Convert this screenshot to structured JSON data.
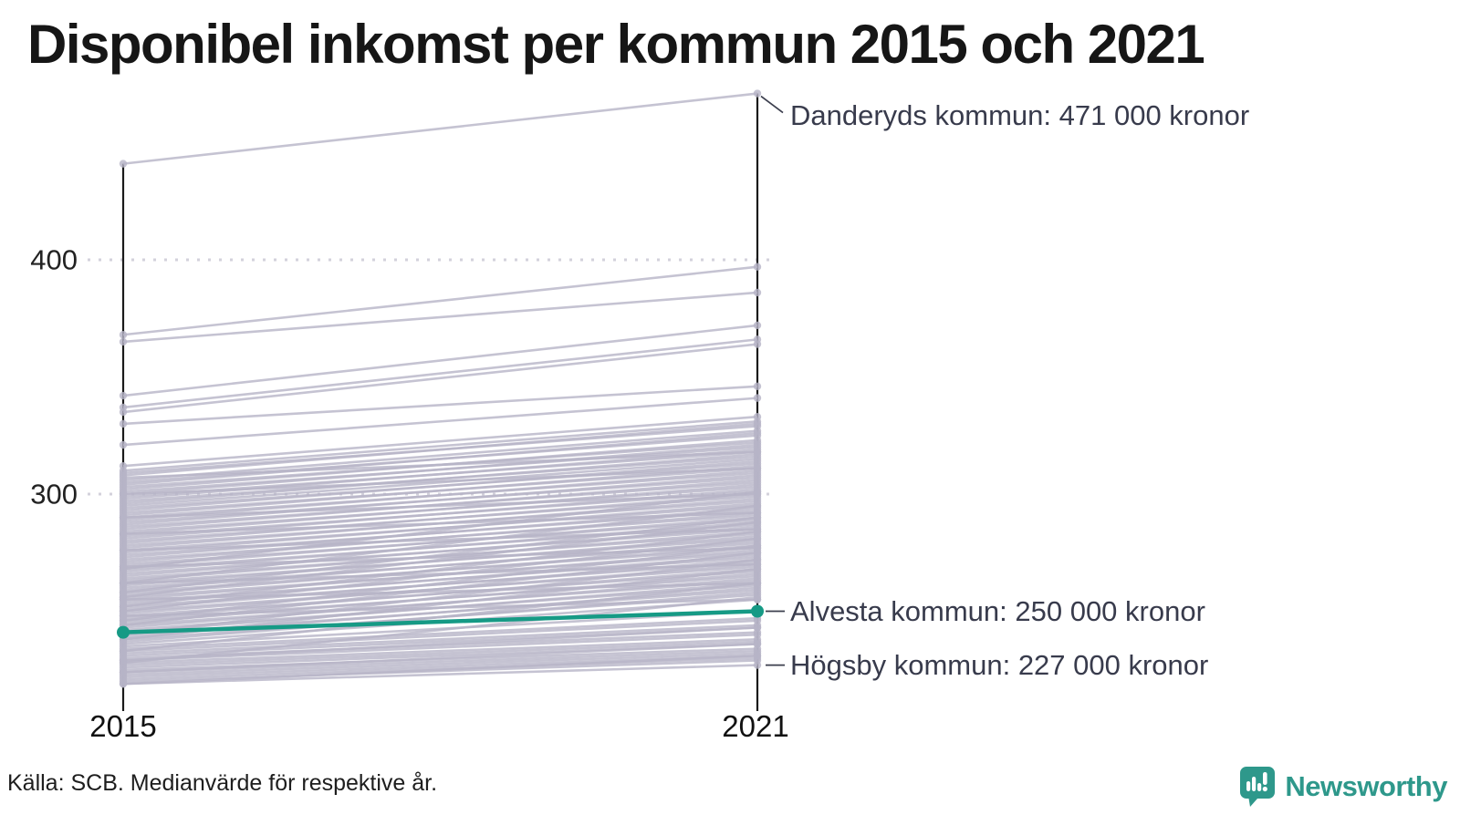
{
  "title": "Disponibel inkomst per kommun 2015 och 2021",
  "source": "Källa: SCB. Medianvärde för respektive år.",
  "logo": {
    "name": "Newsworthy"
  },
  "colors": {
    "highlight": "#169a85",
    "background_line": "#b7b4c7",
    "axis": "#1a1a1a",
    "grid_dot": "#d3d1db",
    "annotation_text": "#383b4c",
    "logo_teal": "#2e988b"
  },
  "chart_data": {
    "type": "line",
    "subtype": "slope",
    "title": "Disponibel inkomst per kommun 2015 och 2021",
    "x_categories": [
      "2015",
      "2021"
    ],
    "y_ticks": [
      300,
      400
    ],
    "ylim": [
      215,
      475
    ],
    "unit": "tusen kronor",
    "grid": "dotted horizontal",
    "legend_position": "none",
    "highlight": {
      "name": "Alvesta kommun",
      "values": [
        241,
        250
      ],
      "color": "#169a85"
    },
    "annotations": [
      {
        "name": "Danderyds kommun",
        "label": "Danderyds kommun: 471 000 kronor",
        "values": [
          441,
          471
        ]
      },
      {
        "name": "Alvesta kommun",
        "label": "Alvesta kommun: 250 000 kronor",
        "values": [
          241,
          250
        ]
      },
      {
        "name": "Högsby kommun",
        "label": "Högsby kommun: 227 000 kronor",
        "values": [
          219,
          227
        ]
      }
    ],
    "layout_hints": {
      "annotation_dy": [
        24,
        0,
        0
      ]
    },
    "background_series": [
      [
        441,
        471
      ],
      [
        368,
        397
      ],
      [
        365,
        386
      ],
      [
        342,
        372
      ],
      [
        337,
        366
      ],
      [
        335,
        364
      ],
      [
        330,
        346
      ],
      [
        321,
        341
      ],
      [
        312,
        333
      ],
      [
        310,
        331
      ],
      [
        309,
        329
      ],
      [
        308,
        330
      ],
      [
        306,
        327
      ],
      [
        305,
        325
      ],
      [
        304,
        326
      ],
      [
        303,
        322
      ],
      [
        302,
        323
      ],
      [
        301,
        320
      ],
      [
        300,
        321
      ],
      [
        299,
        318
      ],
      [
        298,
        319
      ],
      [
        297,
        316
      ],
      [
        296,
        317
      ],
      [
        295,
        315
      ],
      [
        294,
        313
      ],
      [
        293,
        314
      ],
      [
        292,
        311
      ],
      [
        291,
        312
      ],
      [
        290,
        309
      ],
      [
        289,
        310
      ],
      [
        288,
        307
      ],
      [
        287,
        308
      ],
      [
        286,
        305
      ],
      [
        285,
        306
      ],
      [
        284,
        303
      ],
      [
        283,
        304
      ],
      [
        282,
        301
      ],
      [
        281,
        302
      ],
      [
        280,
        299
      ],
      [
        279,
        300
      ],
      [
        278,
        297
      ],
      [
        277,
        298
      ],
      [
        276,
        295
      ],
      [
        275,
        296
      ],
      [
        274,
        293
      ],
      [
        273,
        294
      ],
      [
        272,
        291
      ],
      [
        271,
        292
      ],
      [
        270,
        289
      ],
      [
        269,
        290
      ],
      [
        268,
        287
      ],
      [
        267,
        288
      ],
      [
        266,
        285
      ],
      [
        265,
        286
      ],
      [
        264,
        283
      ],
      [
        263,
        284
      ],
      [
        262,
        281
      ],
      [
        261,
        282
      ],
      [
        260,
        279
      ],
      [
        259,
        280
      ],
      [
        258,
        277
      ],
      [
        257,
        278
      ],
      [
        256,
        275
      ],
      [
        255,
        276
      ],
      [
        254,
        273
      ],
      [
        253,
        274
      ],
      [
        252,
        271
      ],
      [
        251,
        272
      ],
      [
        250,
        269
      ],
      [
        249,
        270
      ],
      [
        248,
        267
      ],
      [
        247,
        268
      ],
      [
        246,
        265
      ],
      [
        245,
        266
      ],
      [
        244,
        263
      ],
      [
        243,
        264
      ],
      [
        242,
        261
      ],
      [
        241,
        262
      ],
      [
        240,
        259
      ],
      [
        239,
        260
      ],
      [
        238,
        257
      ],
      [
        237,
        258
      ],
      [
        236,
        255
      ],
      [
        235,
        250
      ],
      [
        234,
        247
      ],
      [
        233,
        246
      ],
      [
        232,
        244
      ],
      [
        231,
        243
      ],
      [
        230,
        241
      ],
      [
        229,
        240
      ],
      [
        228,
        238
      ],
      [
        227,
        237
      ],
      [
        226,
        236
      ],
      [
        225,
        234
      ],
      [
        224,
        233
      ],
      [
        223,
        232
      ],
      [
        222,
        231
      ],
      [
        221,
        230
      ],
      [
        220,
        229
      ],
      [
        238,
        268
      ],
      [
        233,
        262
      ],
      [
        228,
        256
      ],
      [
        244,
        275
      ],
      [
        250,
        281
      ],
      [
        256,
        288
      ],
      [
        262,
        295
      ],
      [
        268,
        301
      ],
      [
        240,
        272
      ],
      [
        246,
        278
      ],
      [
        252,
        284
      ],
      [
        258,
        290
      ],
      [
        290,
        300
      ],
      [
        283,
        292
      ],
      [
        276,
        285
      ],
      [
        269,
        277
      ],
      [
        262,
        270
      ],
      [
        255,
        262
      ],
      [
        248,
        255
      ],
      [
        300,
        311
      ],
      [
        307,
        318
      ],
      [
        224,
        236
      ],
      [
        229,
        243
      ],
      [
        219,
        231
      ],
      [
        219,
        227
      ]
    ]
  }
}
